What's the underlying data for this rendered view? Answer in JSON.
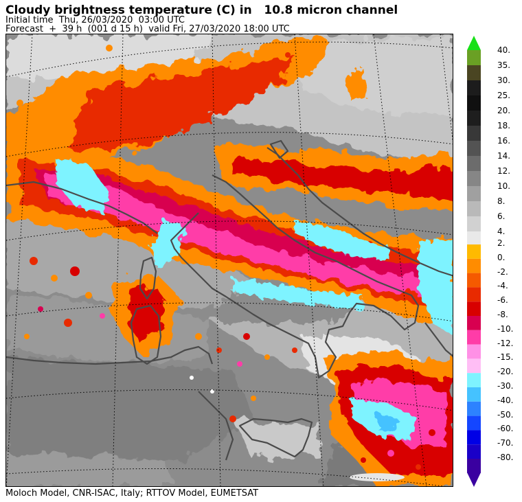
{
  "title": "Cloudy brightness temperature (C) in   10.8 micron channel",
  "subtitle_1": "Initial time  Thu, 26/03/2020  03:00 UTC",
  "subtitle_2": "Forecast  +  39 h  (001 d 15 h)  valid Fri, 27/03/2020 18:00 UTC",
  "footer": "Moloch Model, CNR-ISAC, Italy; RTTOV Model, EUMETSAT",
  "colorbar": {
    "upper": [
      {
        "label": "40.",
        "color": "#6aa024"
      },
      {
        "label": "35.",
        "color": "#4a4522"
      },
      {
        "label": "30.",
        "color": "#1c1c1c"
      },
      {
        "label": "25.",
        "color": "#101010"
      },
      {
        "label": "20.",
        "color": "#1e1e1e"
      },
      {
        "label": "18.",
        "color": "#383838"
      },
      {
        "label": "16.",
        "color": "#535353"
      },
      {
        "label": "14.",
        "color": "#6c6c6c"
      },
      {
        "label": "12.",
        "color": "#868686"
      },
      {
        "label": "10.",
        "color": "#a0a0a0"
      },
      {
        "label": "8.",
        "color": "#b9b9b9"
      },
      {
        "label": "6.",
        "color": "#d1d1d1"
      },
      {
        "label": "4.",
        "color": "#e9e9e9"
      }
    ],
    "lower": [
      {
        "label": "2.",
        "color": "#ffba00"
      },
      {
        "label": "0.",
        "color": "#ff8c00"
      },
      {
        "label": "-2.",
        "color": "#f55a00"
      },
      {
        "label": "-4.",
        "color": "#e82a00"
      },
      {
        "label": "-6.",
        "color": "#d80000"
      },
      {
        "label": "-8.",
        "color": "#d80050"
      },
      {
        "label": "-10.",
        "color": "#ff3ca8"
      },
      {
        "label": "-12.",
        "color": "#ff90e6"
      },
      {
        "label": "-15.",
        "color": "#ffbef5"
      },
      {
        "label": "-20.",
        "color": "#7ef3ff"
      },
      {
        "label": "-30.",
        "color": "#45c2ff"
      },
      {
        "label": "-40.",
        "color": "#2d82ff"
      },
      {
        "label": "-50.",
        "color": "#1446ff"
      },
      {
        "label": "-60.",
        "color": "#0000e6"
      },
      {
        "label": "-70.",
        "color": "#1a00c8"
      },
      {
        "label": "-80.",
        "color": "#3a00a0"
      }
    ],
    "top_arrow_color": "#18e018",
    "bottom_arrow_color": "#3a00a0"
  }
}
